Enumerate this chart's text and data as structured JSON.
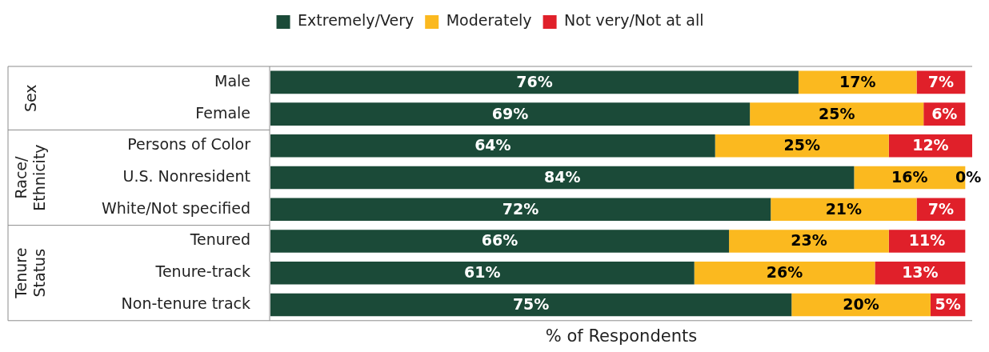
{
  "chart_data": {
    "type": "bar",
    "orientation": "horizontal",
    "stacked": true,
    "xlabel": "% of Respondents",
    "legend": "top",
    "grid": false,
    "tick_labels": "y",
    "categories": [
      "Male",
      "Female",
      "Persons of Color",
      "U.S. Nonresident",
      "White/Not specified",
      "Tenured",
      "Tenure-track",
      "Non-tenure track"
    ],
    "annotations": [
      "Sex",
      "Race/ Ethnicity",
      "Tenure Status"
    ],
    "series": [
      {
        "name": "Extremely/Very",
        "color": "#1b4a38",
        "values": [
          76,
          69,
          64,
          84,
          72,
          66,
          61,
          75
        ],
        "value_labels": [
          "76%",
          "69%",
          "64%",
          "84%",
          "72%",
          "66%",
          "61%",
          "75%"
        ]
      },
      {
        "name": "Moderately",
        "color": "#fbb91f",
        "values": [
          17,
          25,
          25,
          16,
          21,
          23,
          26,
          20
        ],
        "value_labels": [
          "17%",
          "25%",
          "25%",
          "16%",
          "21%",
          "23%",
          "26%",
          "20%"
        ]
      },
      {
        "name": "Not very/Not at all",
        "color": "#e0202a",
        "values": [
          7,
          6,
          12,
          0,
          7,
          11,
          13,
          5
        ],
        "value_labels": [
          "7%",
          "6%",
          "12%",
          "0%",
          "7%",
          "11%",
          "13%",
          "5%"
        ]
      }
    ]
  }
}
